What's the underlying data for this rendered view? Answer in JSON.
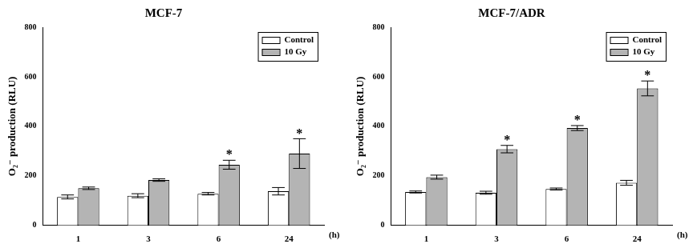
{
  "chart_data": [
    {
      "type": "bar",
      "title": "MCF-7",
      "y_label": "O₂⁻ production (RLU)",
      "x_label": "(h)",
      "categories": [
        "1",
        "3",
        "6",
        "24"
      ],
      "series": [
        {
          "name": "Control",
          "color": "#ffffff",
          "values": [
            115,
            120,
            128,
            138
          ],
          "errors": [
            8,
            8,
            5,
            15
          ]
        },
        {
          "name": "10 Gy",
          "color": "#b4b4b4",
          "values": [
            150,
            183,
            245,
            290
          ],
          "errors": [
            5,
            5,
            18,
            60
          ]
        }
      ],
      "ylim": [
        0,
        800
      ],
      "yticks": [
        0,
        200,
        400,
        600,
        800
      ],
      "grid": false,
      "legend": "upper right",
      "annotations": [
        {
          "text": "*",
          "category": "6",
          "series": "10 Gy"
        },
        {
          "text": "*",
          "category": "24",
          "series": "10 Gy"
        }
      ]
    },
    {
      "type": "bar",
      "title": "MCF-7/ADR",
      "y_label": "O₂⁻ production (RLU)",
      "x_label": "(h)",
      "categories": [
        "1",
        "3",
        "6",
        "24"
      ],
      "series": [
        {
          "name": "Control",
          "color": "#ffffff",
          "values": [
            135,
            132,
            147,
            172
          ],
          "errors": [
            4,
            6,
            4,
            10
          ]
        },
        {
          "name": "10 Gy",
          "color": "#b4b4b4",
          "values": [
            195,
            308,
            393,
            553
          ],
          "errors": [
            8,
            15,
            10,
            30
          ]
        }
      ],
      "ylim": [
        0,
        800
      ],
      "yticks": [
        0,
        200,
        400,
        600,
        800
      ],
      "grid": false,
      "legend": "upper right",
      "annotations": [
        {
          "text": "*",
          "category": "3",
          "series": "10 Gy"
        },
        {
          "text": "*",
          "category": "6",
          "series": "10 Gy"
        },
        {
          "text": "*",
          "category": "24",
          "series": "10 Gy"
        }
      ]
    }
  ]
}
